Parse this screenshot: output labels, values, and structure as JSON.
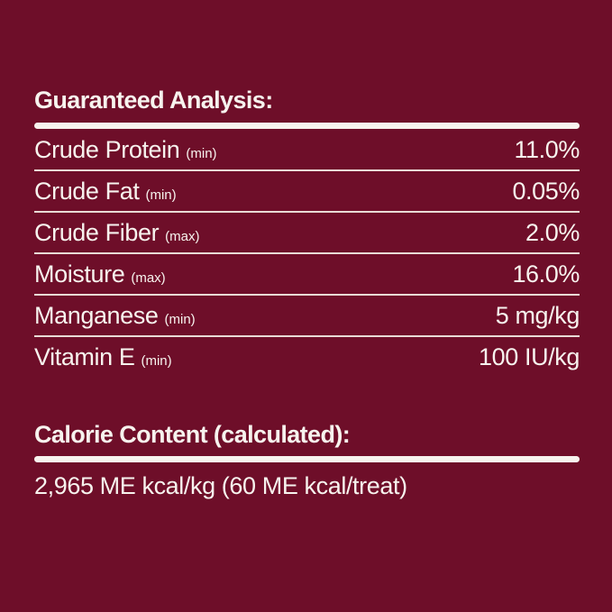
{
  "panel": {
    "background_color": "#6e0e29",
    "text_color": "#f7f3ee",
    "separator_color": "#e9dbd6",
    "guaranteed_analysis": {
      "title": "Guaranteed Analysis:",
      "rows": [
        {
          "label": "Crude Protein",
          "qualifier": "(min)",
          "value": "11.0%"
        },
        {
          "label": "Crude Fat",
          "qualifier": "(min)",
          "value": "0.05%"
        },
        {
          "label": "Crude Fiber",
          "qualifier": "(max)",
          "value": "2.0%"
        },
        {
          "label": "Moisture",
          "qualifier": "(max)",
          "value": "16.0%"
        },
        {
          "label": "Manganese",
          "qualifier": "(min)",
          "value": "5 mg/kg"
        },
        {
          "label": "Vitamin E",
          "qualifier": "(min)",
          "value": "100 IU/kg"
        }
      ]
    },
    "calorie_content": {
      "title": "Calorie Content (calculated):",
      "value": "2,965 ME kcal/kg (60 ME kcal/treat)"
    }
  }
}
